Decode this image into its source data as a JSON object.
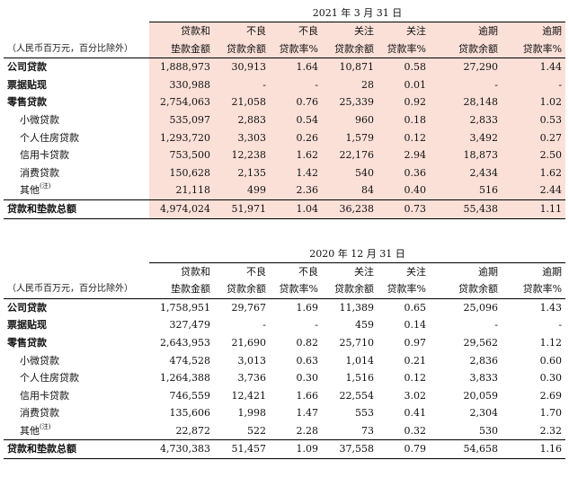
{
  "columns": {
    "unit": "（人民币百万元，百分比除外）",
    "head1": [
      "贷款和",
      "不良",
      "不良",
      "关注",
      "关注",
      "逾期",
      "逾期"
    ],
    "head2": [
      "垫款金额",
      "贷款余额",
      "贷款率%",
      "贷款余额",
      "贷款率%",
      "贷款余额",
      "贷款率%"
    ]
  },
  "tables": [
    {
      "period": "2021 年 3 月 31 日",
      "rows": [
        {
          "label": "公司贷款",
          "values": [
            "1,888,973",
            "30,913",
            "1.64",
            "10,871",
            "0.58",
            "27,290",
            "1.44"
          ]
        },
        {
          "label": "票据贴现",
          "values": [
            "330,988",
            "-",
            "-",
            "28",
            "0.01",
            "-",
            "-"
          ]
        },
        {
          "label": "零售贷款",
          "values": [
            "2,754,063",
            "21,058",
            "0.76",
            "25,339",
            "0.92",
            "28,148",
            "1.02"
          ]
        },
        {
          "label": "小微贷款",
          "values": [
            "535,097",
            "2,883",
            "0.54",
            "960",
            "0.18",
            "2,833",
            "0.53"
          ]
        },
        {
          "label": "个人住房贷款",
          "values": [
            "1,293,720",
            "3,303",
            "0.26",
            "1,579",
            "0.12",
            "3,492",
            "0.27"
          ]
        },
        {
          "label": "信用卡贷款",
          "values": [
            "753,500",
            "12,238",
            "1.62",
            "22,176",
            "2.94",
            "18,873",
            "2.50"
          ]
        },
        {
          "label": "消费贷款",
          "values": [
            "150,628",
            "2,135",
            "1.42",
            "540",
            "0.36",
            "2,434",
            "1.62"
          ]
        },
        {
          "label": "其他",
          "note": "(注)",
          "values": [
            "21,118",
            "499",
            "2.36",
            "84",
            "0.40",
            "516",
            "2.44"
          ]
        }
      ],
      "total": {
        "label": "贷款和垫款总额",
        "values": [
          "4,974,024",
          "51,971",
          "1.04",
          "36,238",
          "0.73",
          "55,438",
          "1.11"
        ]
      }
    },
    {
      "period": "2020 年 12 月 31 日",
      "rows": [
        {
          "label": "公司贷款",
          "values": [
            "1,758,951",
            "29,767",
            "1.69",
            "11,389",
            "0.65",
            "25,096",
            "1.43"
          ]
        },
        {
          "label": "票据贴现",
          "values": [
            "327,479",
            "-",
            "-",
            "459",
            "0.14",
            "-",
            "-"
          ]
        },
        {
          "label": "零售贷款",
          "values": [
            "2,643,953",
            "21,690",
            "0.82",
            "25,710",
            "0.97",
            "29,562",
            "1.12"
          ]
        },
        {
          "label": "小微贷款",
          "values": [
            "474,528",
            "3,013",
            "0.63",
            "1,014",
            "0.21",
            "2,836",
            "0.60"
          ]
        },
        {
          "label": "个人住房贷款",
          "values": [
            "1,264,388",
            "3,736",
            "0.30",
            "1,516",
            "0.12",
            "3,833",
            "0.30"
          ]
        },
        {
          "label": "信用卡贷款",
          "values": [
            "746,559",
            "12,421",
            "1.66",
            "22,554",
            "3.02",
            "20,059",
            "2.69"
          ]
        },
        {
          "label": "消费贷款",
          "values": [
            "135,606",
            "1,998",
            "1.47",
            "553",
            "0.41",
            "2,304",
            "1.70"
          ]
        },
        {
          "label": "其他",
          "note": "(注)",
          "values": [
            "22,872",
            "522",
            "2.28",
            "73",
            "0.32",
            "530",
            "2.32"
          ]
        }
      ],
      "total": {
        "label": "贷款和垫款总额",
        "values": [
          "4,730,383",
          "51,457",
          "1.09",
          "37,558",
          "0.79",
          "54,658",
          "1.16"
        ]
      }
    }
  ]
}
